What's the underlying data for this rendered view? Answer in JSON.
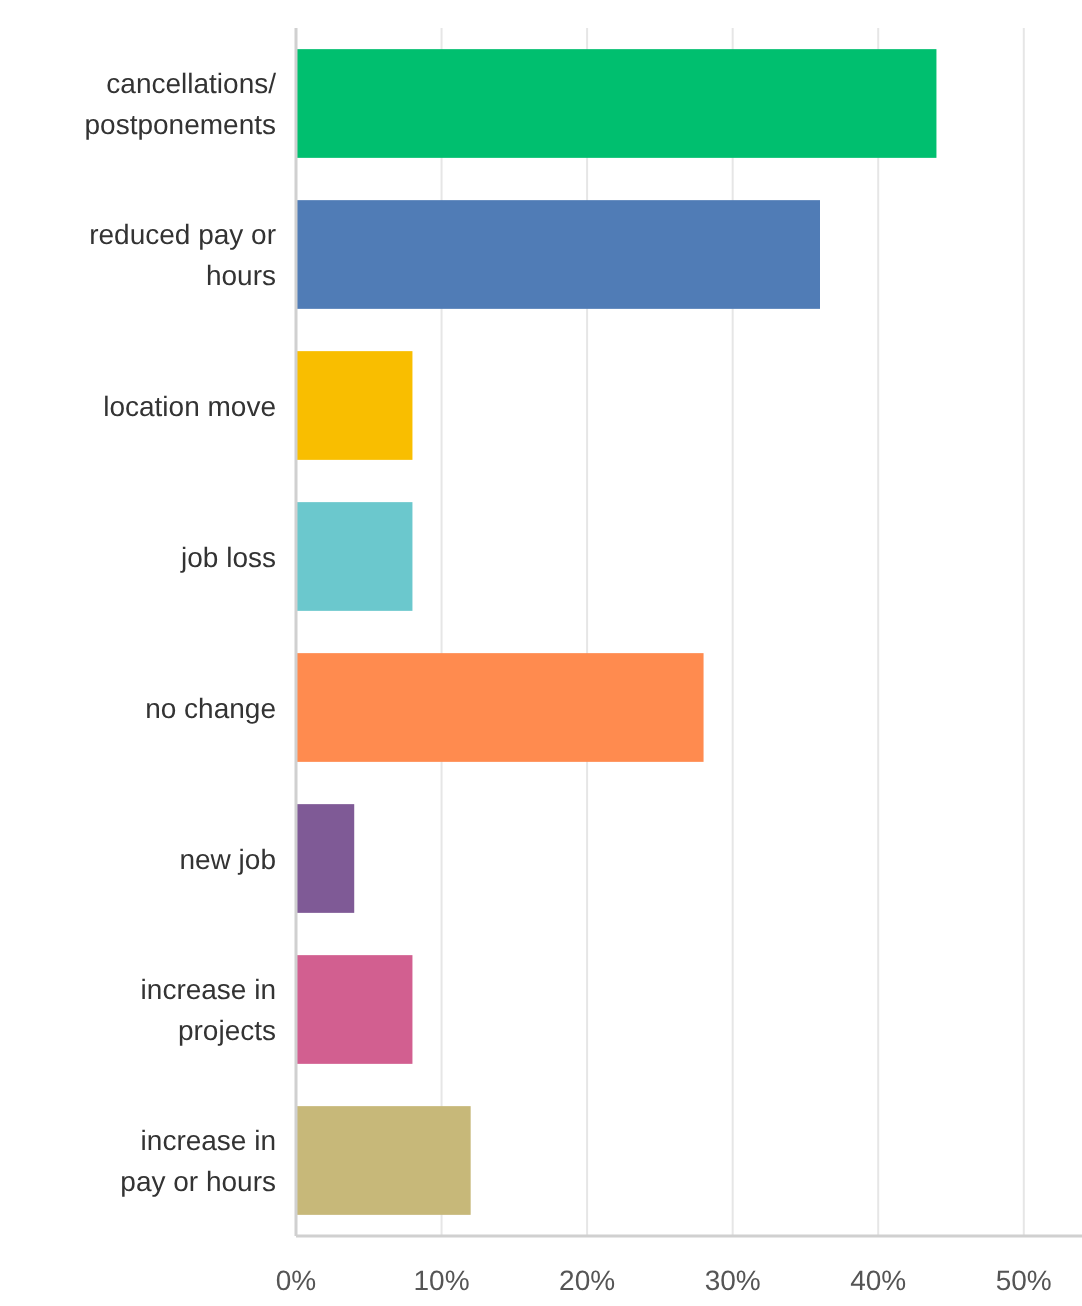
{
  "chart_data": {
    "type": "bar",
    "orientation": "horizontal",
    "categories": [
      "cancellations/postponements",
      "reduced pay or hours",
      "location move",
      "job loss",
      "no change",
      "new job",
      "increase in projects",
      "increase in pay or hours"
    ],
    "values": [
      44,
      36,
      8,
      8,
      28,
      4,
      8,
      12
    ],
    "colors": [
      "#00bf6f",
      "#507cb6",
      "#f9be00",
      "#6bc8cd",
      "#ff8b4f",
      "#7f5a96",
      "#d25f90",
      "#c7b879"
    ],
    "xlim": [
      0,
      54
    ],
    "xticks": [
      {
        "value": 0,
        "label": "0%"
      },
      {
        "value": 10,
        "label": "10%"
      },
      {
        "value": 20,
        "label": "20%"
      },
      {
        "value": 30,
        "label": "30%"
      },
      {
        "value": 40,
        "label": "40%"
      },
      {
        "value": 50,
        "label": "50%"
      }
    ],
    "grid": "x"
  }
}
